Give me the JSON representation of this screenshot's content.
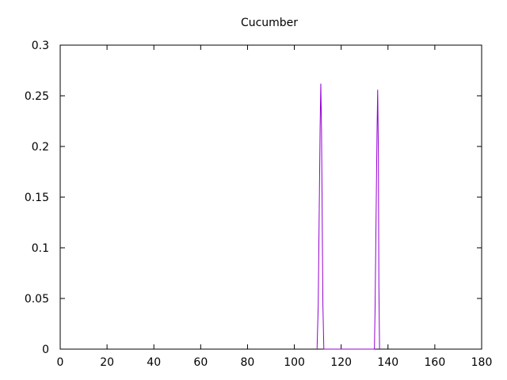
{
  "chart_data": {
    "type": "line",
    "title": "Cucumber",
    "xlabel": "",
    "ylabel": "",
    "xlim": [
      0,
      180
    ],
    "ylim": [
      0,
      0.3
    ],
    "x_ticks": [
      0,
      20,
      40,
      60,
      80,
      100,
      120,
      140,
      160,
      180
    ],
    "y_ticks": [
      0,
      0.05,
      0.1,
      0.15,
      0.2,
      0.25,
      0.3
    ],
    "y_tick_labels": [
      "0",
      "0.05",
      "0.1",
      "0.15",
      "0.2",
      "0.25",
      "0.3"
    ],
    "grid": false,
    "legend": "none",
    "series": [
      {
        "color": "#9400d3",
        "points": [
          [
            109.7,
            0
          ],
          [
            110.2,
            0.043
          ],
          [
            110.6,
            0.13
          ],
          [
            111.0,
            0.218
          ],
          [
            111.3,
            0.262
          ],
          [
            111.6,
            0.218
          ],
          [
            111.9,
            0.13
          ],
          [
            112.2,
            0.043
          ],
          [
            112.6,
            0
          ],
          [
            134.2,
            0
          ],
          [
            134.5,
            0.043
          ],
          [
            134.9,
            0.128
          ],
          [
            135.3,
            0.212
          ],
          [
            135.6,
            0.256
          ],
          [
            135.9,
            0.192
          ],
          [
            136.1,
            0.064
          ],
          [
            136.4,
            0
          ]
        ]
      }
    ]
  }
}
